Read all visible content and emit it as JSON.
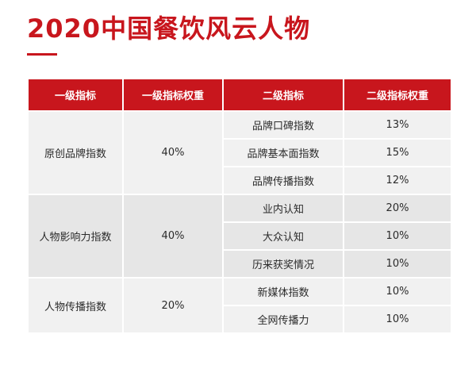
{
  "title": "2020中国餐饮风云人物",
  "table": {
    "headers": [
      "一级指标",
      "一级指标权重",
      "二级指标",
      "二级指标权重"
    ],
    "groups": [
      {
        "name": "原创品牌指数",
        "weight": "40%",
        "items": [
          {
            "name": "品牌口碑指数",
            "weight": "13%"
          },
          {
            "name": "品牌基本面指数",
            "weight": "15%"
          },
          {
            "name": "品牌传播指数",
            "weight": "12%"
          }
        ]
      },
      {
        "name": "人物影响力指数",
        "weight": "40%",
        "items": [
          {
            "name": "业内认知",
            "weight": "20%"
          },
          {
            "name": "大众认知",
            "weight": "10%"
          },
          {
            "name": "历来获奖情况",
            "weight": "10%"
          }
        ]
      },
      {
        "name": "人物传播指数",
        "weight": "20%",
        "items": [
          {
            "name": "新媒体指数",
            "weight": "10%"
          },
          {
            "name": "全网传播力",
            "weight": "10%"
          }
        ]
      }
    ]
  },
  "colors": {
    "accent": "#c8161d",
    "row_light": "#f1f1f1",
    "row_dark": "#e6e6e6"
  }
}
